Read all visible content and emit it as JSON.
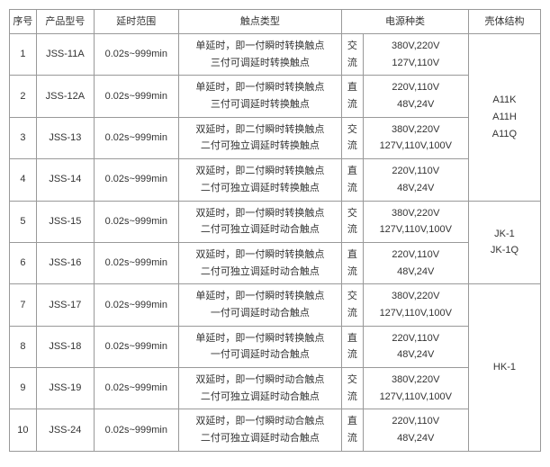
{
  "headers": {
    "seq": "序号",
    "model": "产品型号",
    "range": "延时范围",
    "contact": "触点类型",
    "power": "电源种类",
    "shell": "壳体结构"
  },
  "rows": [
    {
      "seq": "1",
      "model": "JSS-11A",
      "range": "0.02s~999min",
      "contact_l1": "单延时，即一付瞬时转换触点",
      "contact_l2": "三付可调延时转换触点",
      "ptype_l1": "交",
      "ptype_l2": "流",
      "pvolt_l1": "380V,220V",
      "pvolt_l2": "127V,110V"
    },
    {
      "seq": "2",
      "model": "JSS-12A",
      "range": "0.02s~999min",
      "contact_l1": "单延时，即一付瞬时转换触点",
      "contact_l2": "三付可调延时转换触点",
      "ptype_l1": "直",
      "ptype_l2": "流",
      "pvolt_l1": "220V,110V",
      "pvolt_l2": "48V,24V"
    },
    {
      "seq": "3",
      "model": "JSS-13",
      "range": "0.02s~999min",
      "contact_l1": "双延时，即二付瞬时转换触点",
      "contact_l2": "二付可独立调延时转换触点",
      "ptype_l1": "交",
      "ptype_l2": "流",
      "pvolt_l1": "380V,220V",
      "pvolt_l2": "127V,110V,100V"
    },
    {
      "seq": "4",
      "model": "JSS-14",
      "range": "0.02s~999min",
      "contact_l1": "双延时，即二付瞬时转换触点",
      "contact_l2": "二付可独立调延时转换触点",
      "ptype_l1": "直",
      "ptype_l2": "流",
      "pvolt_l1": "220V,110V",
      "pvolt_l2": "48V,24V"
    },
    {
      "seq": "5",
      "model": "JSS-15",
      "range": "0.02s~999min",
      "contact_l1": "双延时，即一付瞬时转换触点",
      "contact_l2": "二付可独立调延时动合触点",
      "ptype_l1": "交",
      "ptype_l2": "流",
      "pvolt_l1": "380V,220V",
      "pvolt_l2": "127V,110V,100V"
    },
    {
      "seq": "6",
      "model": "JSS-16",
      "range": "0.02s~999min",
      "contact_l1": "双延时，即一付瞬时转换触点",
      "contact_l2": "二付可独立调延时动合触点",
      "ptype_l1": "直",
      "ptype_l2": "流",
      "pvolt_l1": "220V,110V",
      "pvolt_l2": "48V,24V"
    },
    {
      "seq": "7",
      "model": "JSS-17",
      "range": "0.02s~999min",
      "contact_l1": "单延时，即一付瞬时转换触点",
      "contact_l2": "一付可调延时动合触点",
      "ptype_l1": "交",
      "ptype_l2": "流",
      "pvolt_l1": "380V,220V",
      "pvolt_l2": "127V,110V,100V"
    },
    {
      "seq": "8",
      "model": "JSS-18",
      "range": "0.02s~999min",
      "contact_l1": "单延时，即一付瞬时转换触点",
      "contact_l2": "一付可调延时动合触点",
      "ptype_l1": "直",
      "ptype_l2": "流",
      "pvolt_l1": "220V,110V",
      "pvolt_l2": "48V,24V"
    },
    {
      "seq": "9",
      "model": "JSS-19",
      "range": "0.02s~999min",
      "contact_l1": "双延时，即一付瞬时动合触点",
      "contact_l2": "二付可独立调延时动合触点",
      "ptype_l1": "交",
      "ptype_l2": "流",
      "pvolt_l1": "380V,220V",
      "pvolt_l2": "127V,110V,100V"
    },
    {
      "seq": "10",
      "model": "JSS-24",
      "range": "0.02s~999min",
      "contact_l1": "双延时，即一付瞬时动合触点",
      "contact_l2": "二付可独立调延时动合触点",
      "ptype_l1": "直",
      "ptype_l2": "流",
      "pvolt_l1": "220V,110V",
      "pvolt_l2": "48V,24V"
    }
  ],
  "shell_groups": [
    {
      "span": 4,
      "l1": "A11K",
      "l2": "A11H",
      "l3": "A11Q"
    },
    {
      "span": 2,
      "l1": "JK-1",
      "l2": "JK-1Q",
      "l3": ""
    },
    {
      "span": 4,
      "l1": "HK-1",
      "l2": "",
      "l3": ""
    }
  ]
}
